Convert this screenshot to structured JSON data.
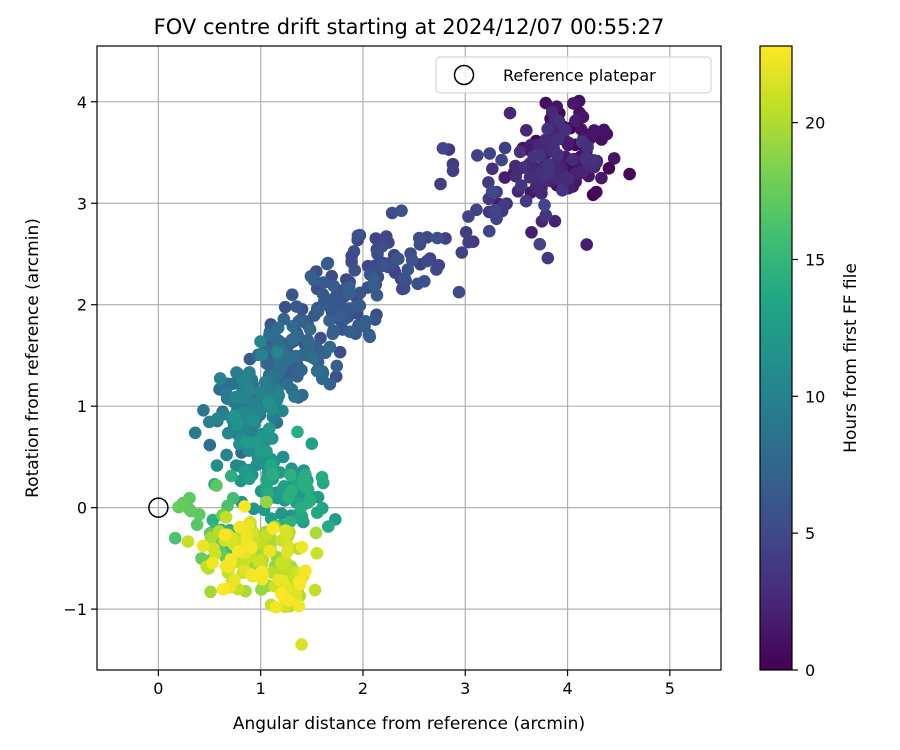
{
  "chart_data": {
    "type": "scatter",
    "title": "FOV centre drift starting at 2024/12/07 00:55:27",
    "xlabel": "Angular distance from reference (arcmin)",
    "ylabel": "Rotation from reference (arcmin)",
    "xlim": [
      -0.6,
      5.5
    ],
    "ylim": [
      -1.6,
      4.55
    ],
    "x_ticks": [
      0,
      1,
      2,
      3,
      4,
      5
    ],
    "x_tick_labels": [
      "0",
      "1",
      "2",
      "3",
      "4",
      "5"
    ],
    "y_ticks": [
      -1,
      0,
      1,
      2,
      3,
      4
    ],
    "y_tick_labels": [
      "−1",
      "0",
      "1",
      "2",
      "3",
      "4"
    ],
    "grid": true,
    "legend": {
      "position": "top-right",
      "label": "Reference platepar",
      "marker": "open-circle"
    },
    "reference_point": {
      "x": 0,
      "y": 0
    },
    "colorbar": {
      "label": "Hours from first FF file",
      "range": [
        0,
        22.8
      ],
      "ticks": [
        0,
        5,
        10,
        15,
        20
      ],
      "tick_labels": [
        "0",
        "5",
        "10",
        "15",
        "20"
      ],
      "colormap": "viridis"
    },
    "clusters": [
      {
        "t": [
          0.0,
          1.5
        ],
        "cx": 4.05,
        "cy": 3.55,
        "sx": 0.2,
        "sy": 0.22,
        "n": 70
      },
      {
        "t": [
          1.5,
          3.5
        ],
        "cx": 3.8,
        "cy": 3.35,
        "sx": 0.25,
        "sy": 0.3,
        "n": 90
      },
      {
        "t": [
          3.5,
          5.0
        ],
        "cx": 3.1,
        "cy": 3.0,
        "sx": 0.35,
        "sy": 0.25,
        "n": 30
      },
      {
        "t": [
          4.0,
          6.0
        ],
        "cx": 2.3,
        "cy": 2.4,
        "sx": 0.3,
        "sy": 0.2,
        "n": 50
      },
      {
        "t": [
          5.0,
          7.0
        ],
        "cx": 1.75,
        "cy": 1.9,
        "sx": 0.22,
        "sy": 0.22,
        "n": 80
      },
      {
        "t": [
          6.5,
          8.5
        ],
        "cx": 1.3,
        "cy": 1.45,
        "sx": 0.2,
        "sy": 0.2,
        "n": 80
      },
      {
        "t": [
          8.0,
          10.5
        ],
        "cx": 0.9,
        "cy": 1.0,
        "sx": 0.17,
        "sy": 0.2,
        "n": 110
      },
      {
        "t": [
          10.5,
          12.5
        ],
        "cx": 0.95,
        "cy": 0.55,
        "sx": 0.15,
        "sy": 0.2,
        "n": 40
      },
      {
        "t": [
          11.5,
          14.5
        ],
        "cx": 1.3,
        "cy": 0.15,
        "sx": 0.2,
        "sy": 0.2,
        "n": 60
      },
      {
        "t": [
          14.0,
          18.0
        ],
        "cx": 0.75,
        "cy": -0.3,
        "sx": 0.25,
        "sy": 0.2,
        "n": 35
      },
      {
        "t": [
          17.0,
          18.0
        ],
        "cx": 0.22,
        "cy": 0.02,
        "sx": 0.06,
        "sy": 0.03,
        "n": 5
      },
      {
        "t": [
          19.0,
          22.8
        ],
        "cx": 0.95,
        "cy": -0.45,
        "sx": 0.22,
        "sy": 0.17,
        "n": 120
      },
      {
        "t": [
          20.0,
          22.8
        ],
        "cx": 1.3,
        "cy": -0.8,
        "sx": 0.1,
        "sy": 0.12,
        "n": 30
      }
    ],
    "outliers": [
      {
        "x": 1.4,
        "y": -1.35,
        "t": 21.5
      },
      {
        "x": 1.95,
        "y": 2.68,
        "t": 6.0
      },
      {
        "x": 2.88,
        "y": 3.32,
        "t": 4.2
      },
      {
        "x": 3.85,
        "y": 3.9,
        "t": 2.5
      },
      {
        "x": 0.44,
        "y": 0.96,
        "t": 9.0
      },
      {
        "x": 0.55,
        "y": 0.23,
        "t": 13.5
      },
      {
        "x": 1.6,
        "y": 0.3,
        "t": 14.0
      },
      {
        "x": 1.5,
        "y": 0.63,
        "t": 13.0
      },
      {
        "x": 1.55,
        "y": -0.45,
        "t": 21.0
      }
    ]
  }
}
